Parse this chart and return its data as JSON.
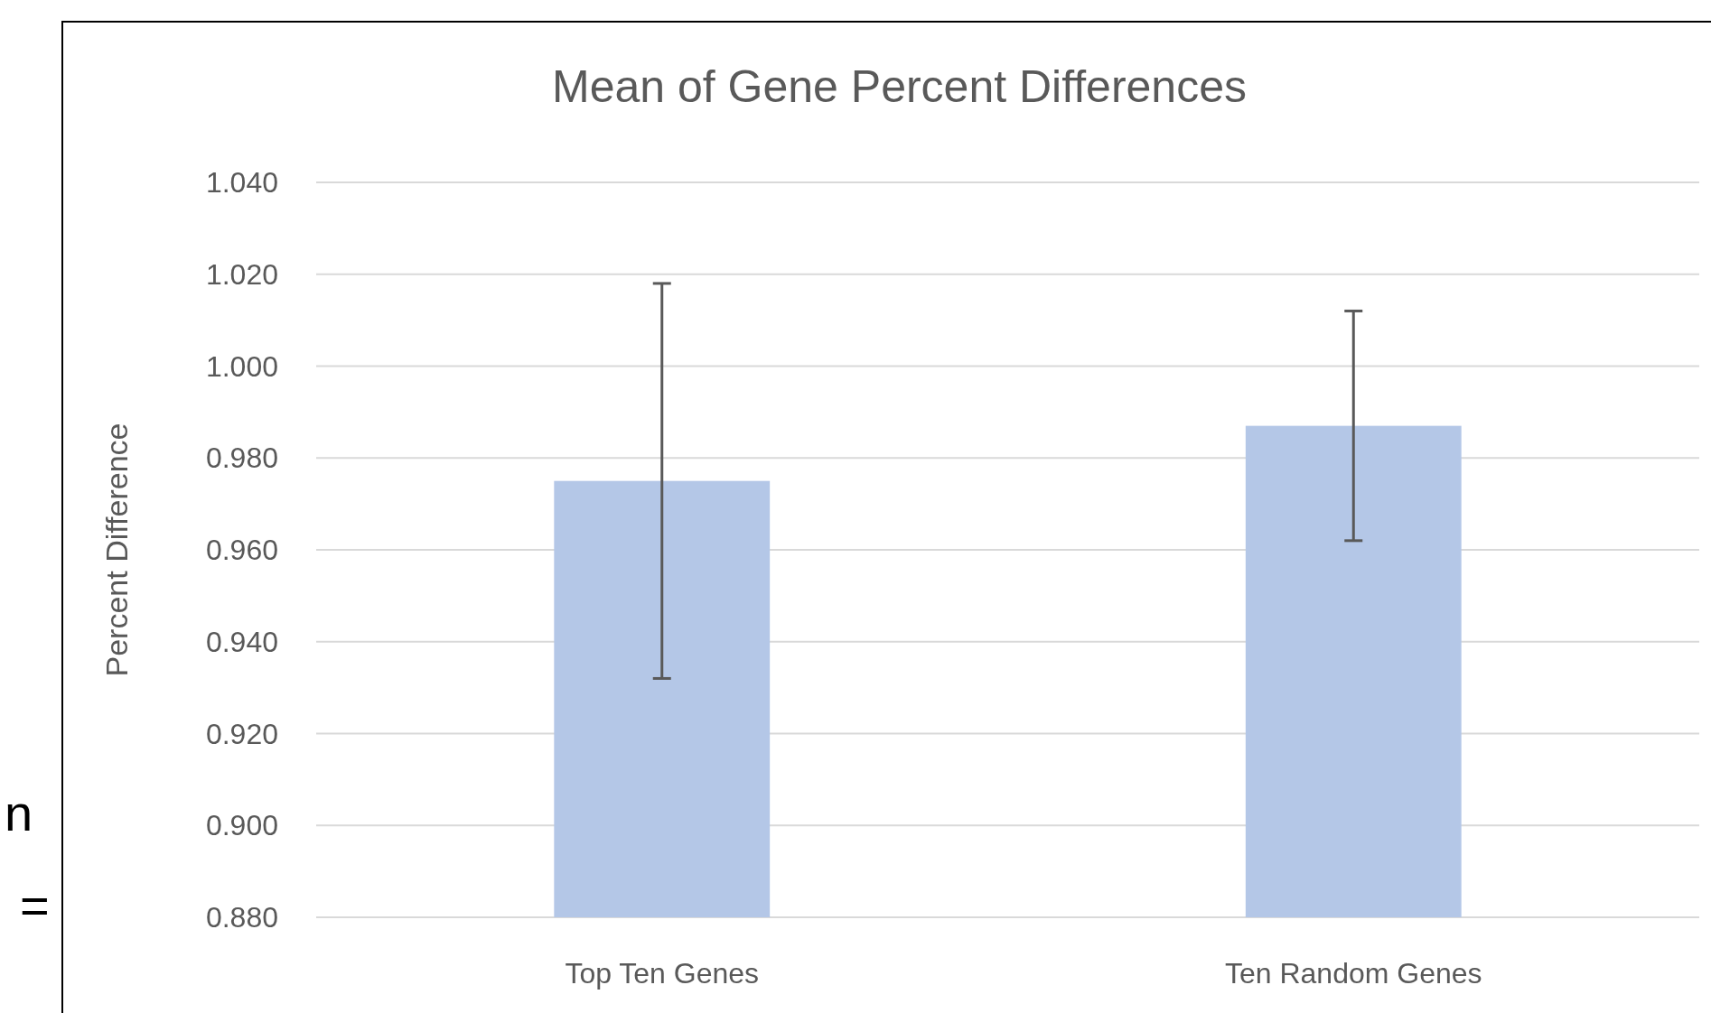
{
  "chart_data": {
    "type": "bar",
    "title": "Mean of Gene Percent Differences",
    "ylabel": "Percent Difference",
    "categories": [
      "Top Ten Genes",
      "Ten Random Genes"
    ],
    "values": [
      0.975,
      0.987
    ],
    "errors": [
      0.043,
      0.025
    ],
    "color": "#b4c7e7",
    "ylim": [
      0.88,
      1.04
    ],
    "yticks": [
      {
        "value": 0.88,
        "label": "0.880"
      },
      {
        "value": 0.9,
        "label": "0.900"
      },
      {
        "value": 0.92,
        "label": "0.920"
      },
      {
        "value": 0.94,
        "label": "0.940"
      },
      {
        "value": 0.96,
        "label": "0.960"
      },
      {
        "value": 0.98,
        "label": "0.980"
      },
      {
        "value": 1.0,
        "label": "1.000"
      },
      {
        "value": 1.02,
        "label": "1.020"
      },
      {
        "value": 1.04,
        "label": "1.040"
      }
    ],
    "grid": "y",
    "annotations": [
      "n",
      "="
    ]
  }
}
